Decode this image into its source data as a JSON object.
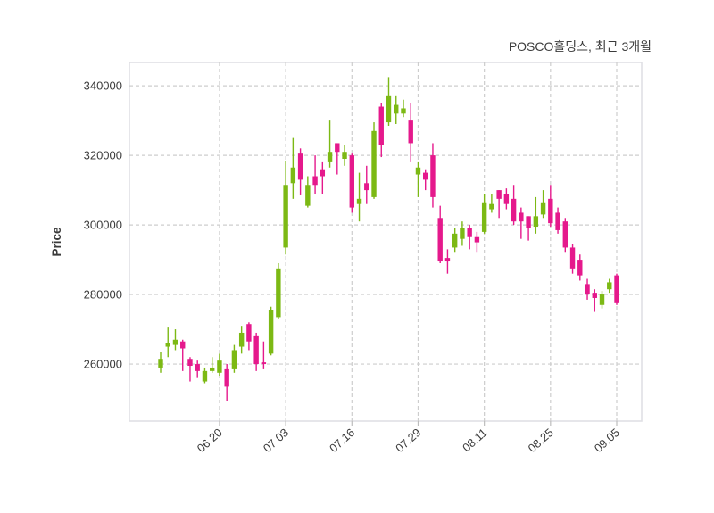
{
  "title": "POSCO홀딩스, 최근 3개월",
  "y_axis_label": "Price",
  "colors": {
    "up": "#7cb914",
    "down": "#e5198c",
    "grid": "#cdcdcd",
    "border": "#e0e0e4",
    "text": "#3b3b3b",
    "tick": "#bdbdbd",
    "background": "#ffffff"
  },
  "chart_data": {
    "type": "candlestick",
    "title": "POSCO홀딩스, 최근 3개월",
    "ylabel": "Price",
    "y_ticks": [
      260000,
      280000,
      300000,
      320000,
      340000
    ],
    "ylim": [
      243600,
      346700
    ],
    "grid": true,
    "x_tick_labels": [
      "06.20",
      "07.03",
      "07.16",
      "07.29",
      "08.11",
      "08.25",
      "09.05"
    ],
    "x_tick_candle_indices": [
      8,
      17,
      26,
      35,
      44,
      53,
      62
    ],
    "ohlc_columns": [
      "open",
      "high",
      "low",
      "close"
    ],
    "ohlc": [
      [
        259000,
        263500,
        257500,
        261500
      ],
      [
        265000,
        270500,
        262000,
        266000
      ],
      [
        265500,
        270000,
        264000,
        267000
      ],
      [
        266500,
        267000,
        258000,
        264500
      ],
      [
        261500,
        262000,
        255000,
        259500
      ],
      [
        260000,
        261000,
        256000,
        258000
      ],
      [
        255000,
        259000,
        254500,
        258000
      ],
      [
        258000,
        262000,
        257500,
        259000
      ],
      [
        257500,
        263000,
        256500,
        261000
      ],
      [
        258500,
        260000,
        249500,
        253500
      ],
      [
        258500,
        265500,
        257500,
        264000
      ],
      [
        265000,
        271000,
        263000,
        269000
      ],
      [
        271500,
        272000,
        264000,
        266500
      ],
      [
        268000,
        269000,
        258000,
        260000
      ],
      [
        260500,
        266500,
        258500,
        260000
      ],
      [
        263000,
        276500,
        262500,
        275500
      ],
      [
        273500,
        289000,
        273000,
        287500
      ],
      [
        293500,
        318500,
        291500,
        311500
      ],
      [
        312000,
        325000,
        307500,
        316500
      ],
      [
        320500,
        322000,
        308500,
        313000
      ],
      [
        305500,
        314000,
        305000,
        311500
      ],
      [
        314000,
        320000,
        309000,
        311500
      ],
      [
        316000,
        318000,
        309000,
        314000
      ],
      [
        318000,
        330000,
        316500,
        321000
      ],
      [
        323500,
        323500,
        314500,
        321000
      ],
      [
        319000,
        323000,
        317000,
        321000
      ],
      [
        320000,
        320500,
        303500,
        305000
      ],
      [
        306000,
        315000,
        301000,
        307500
      ],
      [
        312000,
        317000,
        306000,
        310000
      ],
      [
        308000,
        329500,
        307500,
        327000
      ],
      [
        334000,
        335000,
        319500,
        323000
      ],
      [
        329500,
        342500,
        328500,
        337000
      ],
      [
        332000,
        337000,
        329000,
        334500
      ],
      [
        332000,
        336000,
        331000,
        333500
      ],
      [
        330000,
        335000,
        318000,
        323500
      ],
      [
        314500,
        318000,
        308000,
        316500
      ],
      [
        315000,
        316000,
        310000,
        313000
      ],
      [
        320000,
        323500,
        305000,
        308000
      ],
      [
        302000,
        305500,
        289000,
        289500
      ],
      [
        290500,
        293000,
        286000,
        289500
      ],
      [
        293500,
        299000,
        292000,
        297500
      ],
      [
        296000,
        301000,
        294000,
        299000
      ],
      [
        299000,
        300000,
        293000,
        296500
      ],
      [
        296500,
        298000,
        292000,
        295000
      ],
      [
        298000,
        309000,
        297500,
        306500
      ],
      [
        304500,
        309000,
        303500,
        306000
      ],
      [
        310000,
        310000,
        302000,
        307500
      ],
      [
        309000,
        310500,
        304500,
        306000
      ],
      [
        307500,
        311500,
        300000,
        301000
      ],
      [
        303500,
        305000,
        296000,
        301000
      ],
      [
        302500,
        302500,
        295500,
        299000
      ],
      [
        299500,
        308000,
        297500,
        302500
      ],
      [
        303000,
        310000,
        302000,
        306500
      ],
      [
        307500,
        311500,
        299500,
        300500
      ],
      [
        303500,
        305000,
        297500,
        298500
      ],
      [
        301000,
        302000,
        292000,
        293500
      ],
      [
        293500,
        294500,
        286000,
        287500
      ],
      [
        290000,
        291500,
        284000,
        285500
      ],
      [
        283000,
        284500,
        278500,
        280000
      ],
      [
        280500,
        281500,
        275000,
        279000
      ],
      [
        277000,
        281000,
        276000,
        280000
      ],
      [
        281500,
        284500,
        280500,
        283500
      ],
      [
        285500,
        286000,
        277000,
        277500
      ]
    ]
  }
}
